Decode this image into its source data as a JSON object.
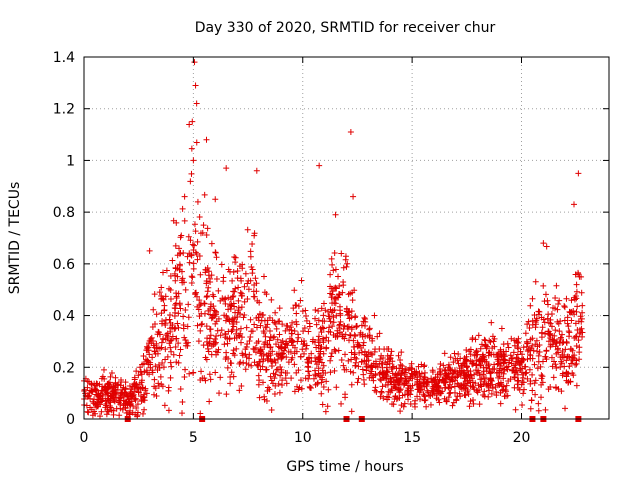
{
  "chart_data": {
    "type": "scatter",
    "title": "Day 330 of 2020, SRMTID for receiver chur",
    "xlabel": "GPS time / hours",
    "ylabel": "SRMTID / TECUs",
    "xlim": [
      0,
      24
    ],
    "ylim": [
      0,
      1.4
    ],
    "xticks": [
      0,
      5,
      10,
      15,
      20
    ],
    "yticks": [
      0,
      0.2,
      0.4,
      0.6,
      0.8,
      1,
      1.2,
      1.4
    ],
    "ytick_labels": [
      "0",
      "0.2",
      "0.4",
      "0.6",
      "0.8",
      "1",
      "1.2",
      "1.4"
    ],
    "grid": true,
    "marker": "+",
    "color": "#e00000",
    "envelope_hours": [
      0,
      0.5,
      1,
      1.5,
      2,
      2.5,
      3,
      3.5,
      4,
      4.5,
      5,
      5.5,
      6,
      6.5,
      7,
      7.5,
      8,
      8.5,
      9,
      9.5,
      10,
      10.5,
      11,
      11.5,
      12,
      12.5,
      13,
      13.5,
      14,
      14.5,
      15,
      15.5,
      16,
      16.5,
      17,
      17.5,
      18,
      18.5,
      19,
      19.5,
      20,
      20.5,
      21,
      21.5,
      22,
      22.5,
      22.8
    ],
    "envelope_median": [
      0.08,
      0.09,
      0.1,
      0.09,
      0.07,
      0.1,
      0.2,
      0.32,
      0.4,
      0.48,
      0.55,
      0.45,
      0.38,
      0.36,
      0.38,
      0.42,
      0.34,
      0.25,
      0.27,
      0.3,
      0.3,
      0.22,
      0.28,
      0.4,
      0.36,
      0.28,
      0.24,
      0.2,
      0.16,
      0.15,
      0.14,
      0.13,
      0.14,
      0.15,
      0.15,
      0.16,
      0.2,
      0.21,
      0.2,
      0.2,
      0.2,
      0.28,
      0.33,
      0.3,
      0.28,
      0.33,
      0.33
    ],
    "envelope_spread": [
      0.04,
      0.05,
      0.05,
      0.04,
      0.03,
      0.05,
      0.09,
      0.12,
      0.15,
      0.22,
      0.3,
      0.2,
      0.14,
      0.13,
      0.15,
      0.18,
      0.14,
      0.09,
      0.1,
      0.12,
      0.12,
      0.09,
      0.12,
      0.16,
      0.14,
      0.1,
      0.08,
      0.06,
      0.05,
      0.05,
      0.04,
      0.04,
      0.04,
      0.05,
      0.05,
      0.05,
      0.07,
      0.08,
      0.07,
      0.07,
      0.08,
      0.12,
      0.14,
      0.11,
      0.1,
      0.14,
      0.12
    ],
    "peak_points": [
      {
        "x": 5.05,
        "y": 1.38
      },
      {
        "x": 5.1,
        "y": 1.29
      },
      {
        "x": 5.15,
        "y": 1.22
      },
      {
        "x": 4.95,
        "y": 1.15
      },
      {
        "x": 12.2,
        "y": 1.11
      },
      {
        "x": 5.6,
        "y": 1.08
      },
      {
        "x": 5.0,
        "y": 1.0
      },
      {
        "x": 10.75,
        "y": 0.98
      },
      {
        "x": 6.5,
        "y": 0.97
      },
      {
        "x": 7.9,
        "y": 0.96
      },
      {
        "x": 22.6,
        "y": 0.95
      },
      {
        "x": 12.3,
        "y": 0.86
      },
      {
        "x": 4.6,
        "y": 0.86
      },
      {
        "x": 6.0,
        "y": 0.85
      },
      {
        "x": 3.0,
        "y": 0.65
      },
      {
        "x": 21.0,
        "y": 0.68
      },
      {
        "x": 11.5,
        "y": 0.79
      },
      {
        "x": 22.4,
        "y": 0.83
      }
    ],
    "zero_markers": [
      5.4,
      12.0,
      12.7,
      20.5,
      21.0,
      22.6,
      2.0
    ]
  }
}
